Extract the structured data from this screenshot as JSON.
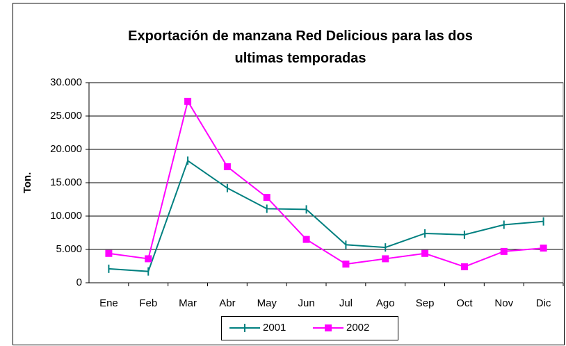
{
  "chart_data": {
    "type": "line",
    "title": "Exportación de manzana Red Delicious para las dos ultimas temporadas",
    "y_label": "Ton.",
    "categories": [
      "Ene",
      "Feb",
      "Mar",
      "Abr",
      "May",
      "Jun",
      "Jul",
      "Ago",
      "Sep",
      "Oct",
      "Nov",
      "Dic"
    ],
    "series": [
      {
        "name": "2001",
        "color": "#008080",
        "values": [
          2100,
          1700,
          18300,
          14200,
          11100,
          11000,
          5700,
          5300,
          7400,
          7200,
          8700,
          9200
        ]
      },
      {
        "name": "2002",
        "color": "#ff00ff",
        "values": [
          4400,
          3600,
          27200,
          17400,
          12800,
          6500,
          2800,
          3600,
          4400,
          2400,
          4700,
          5200
        ]
      }
    ],
    "ylim": [
      0,
      30000
    ],
    "yticks": [
      0,
      {
        "value": 5000,
        "label": "5.000"
      },
      {
        "value": 10000,
        "label": "10.000"
      },
      {
        "value": 15000,
        "label": "15.000"
      },
      {
        "value": 20000,
        "label": "20.000"
      },
      {
        "value": 25000,
        "label": "25.000"
      },
      {
        "value": 30000,
        "label": "30.000"
      }
    ],
    "grid": true,
    "legend": "bottom"
  }
}
